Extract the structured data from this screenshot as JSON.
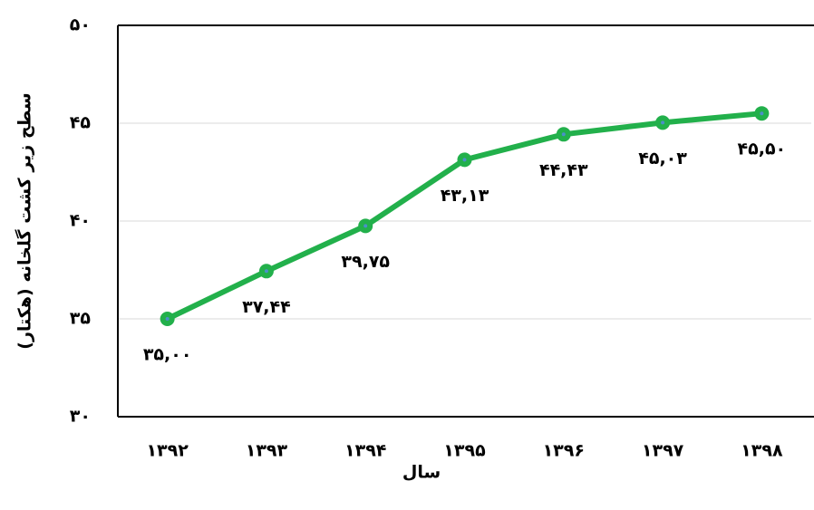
{
  "chart_data": {
    "type": "line",
    "x_label": "سال",
    "y_label": "سطح زیر کشت گلخانه (هکتار)",
    "categories": [
      "۱۳۹۲",
      "۱۳۹۳",
      "۱۳۹۴",
      "۱۳۹۵",
      "۱۳۹۶",
      "۱۳۹۷",
      "۱۳۹۸"
    ],
    "series": [
      {
        "color": "#22b04b",
        "values": [
          35.0,
          37.44,
          39.75,
          43.13,
          44.43,
          45.03,
          45.5
        ],
        "value_labels": [
          "۳۵,۰۰",
          "۳۷,۴۴",
          "۳۹,۷۵",
          "۴۳,۱۳",
          "۴۴,۴۳",
          "۴۵,۰۳",
          "۴۵,۵۰"
        ]
      }
    ],
    "ylim": [
      30,
      50
    ],
    "yticks": [
      {
        "value": 30,
        "label": "۳۰"
      },
      {
        "value": 35,
        "label": "۳۵"
      },
      {
        "value": 40,
        "label": "۴۰"
      },
      {
        "value": 45,
        "label": "۴۵"
      },
      {
        "value": 50,
        "label": "۵۰"
      }
    ],
    "grid": true
  }
}
